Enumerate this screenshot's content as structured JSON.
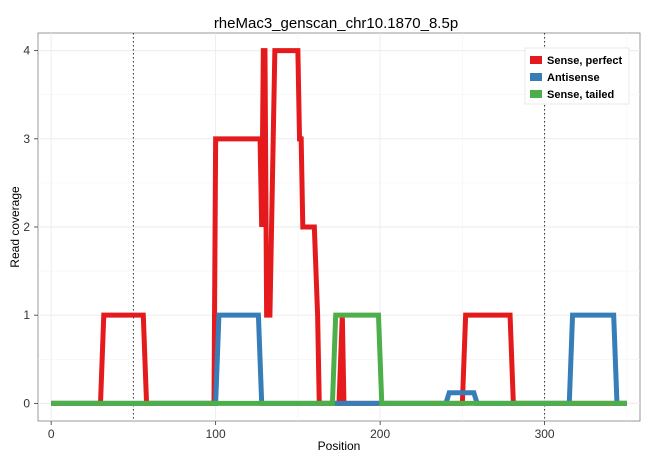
{
  "chart_data": {
    "type": "line",
    "title": "rheMac3_genscan_chr10.1870_8.5p",
    "xlabel": "Position",
    "ylabel": "Read coverage",
    "xlim": [
      -8,
      358
    ],
    "ylim": [
      -0.2,
      4.2
    ],
    "x_ticks": [
      0,
      100,
      200,
      300
    ],
    "y_ticks": [
      0,
      1,
      2,
      3,
      4
    ],
    "x_tick_labels": [
      "0",
      "100",
      "200",
      "300"
    ],
    "y_tick_labels": [
      "0",
      "1",
      "2",
      "3",
      "4"
    ],
    "grid": true,
    "legend_position": "top-right",
    "vlines": [
      50,
      300
    ],
    "series": [
      {
        "name": "Sense, perfect",
        "color": "#E41A1C",
        "x": [
          0,
          30,
          32,
          56,
          58,
          99,
          100,
          127,
          128,
          129,
          130,
          131,
          133,
          134,
          135,
          136,
          150,
          151,
          152,
          153,
          160,
          162,
          163,
          175,
          177,
          178,
          250,
          252,
          279,
          281,
          350
        ],
        "y": [
          0,
          0,
          1,
          1,
          0,
          0,
          3,
          3,
          2,
          4,
          4,
          1,
          1,
          2,
          3,
          4,
          4,
          3,
          3,
          2,
          2,
          1,
          0,
          0,
          1,
          0,
          0,
          1,
          1,
          0,
          0
        ]
      },
      {
        "name": "Antisense",
        "color": "#377EB8",
        "x": [
          0,
          100,
          102,
          126,
          128,
          240,
          242,
          257,
          259,
          315,
          317,
          342,
          344,
          350
        ],
        "y": [
          0,
          0,
          1,
          1,
          0,
          0,
          0.12,
          0.12,
          0,
          0,
          1,
          1,
          0,
          0
        ]
      },
      {
        "name": "Sense, tailed",
        "color": "#4DAF4A",
        "x": [
          0,
          171,
          173,
          199,
          201,
          350
        ],
        "y": [
          0,
          0,
          1,
          1,
          0,
          0
        ]
      }
    ]
  }
}
